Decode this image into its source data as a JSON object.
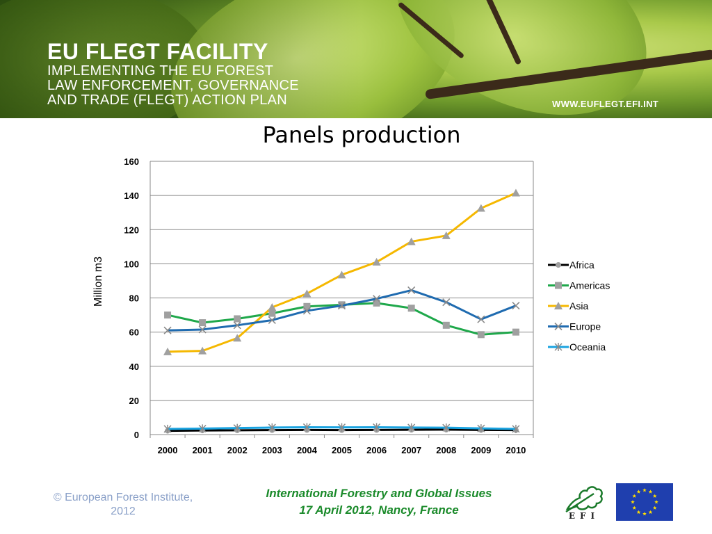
{
  "banner": {
    "title": "EU FLEGT FACILITY",
    "subtitle_lines": [
      "IMPLEMENTING THE EU FOREST",
      "LAW ENFORCEMENT, GOVERNANCE",
      "AND TRADE (FLEGT) ACTION PLAN"
    ],
    "url": "WWW.EUFLEGT.EFI.INT"
  },
  "chart_data": {
    "type": "line",
    "title": "Panels production",
    "ylabel": "Million m3",
    "xlabel": "",
    "x": [
      "2000",
      "2001",
      "2002",
      "2003",
      "2004",
      "2005",
      "2006",
      "2007",
      "2008",
      "2009",
      "2010"
    ],
    "ylim": [
      0,
      160
    ],
    "yticks": [
      0,
      20,
      40,
      60,
      80,
      100,
      120,
      140,
      160
    ],
    "grid": "horizontal",
    "legend": "right",
    "series": [
      {
        "name": "Africa",
        "color": "#000000",
        "marker": "circle",
        "values": [
          2.2,
          2.4,
          2.5,
          2.6,
          2.7,
          2.6,
          2.7,
          2.8,
          2.9,
          2.7,
          2.6
        ]
      },
      {
        "name": "Americas",
        "color": "#1fa84b",
        "marker": "square",
        "values": [
          70,
          65.5,
          67.8,
          71,
          75,
          76,
          77,
          74,
          64,
          58.5,
          60
        ]
      },
      {
        "name": "Asia",
        "color": "#f5b800",
        "marker": "triangle",
        "values": [
          48.5,
          49,
          56.5,
          74.5,
          82.5,
          93.5,
          101,
          113,
          116.5,
          132.5,
          141.5
        ]
      },
      {
        "name": "Europe",
        "color": "#1f6bb0",
        "marker": "x",
        "values": [
          61,
          61.5,
          64,
          67,
          72.5,
          75.5,
          79.5,
          84.5,
          77.5,
          67.5,
          75.5
        ]
      },
      {
        "name": "Oceania",
        "color": "#1aa3e0",
        "marker": "star",
        "values": [
          3.3,
          3.5,
          3.8,
          4.1,
          4.3,
          4.2,
          4.3,
          4.1,
          4.0,
          3.6,
          3.3
        ]
      }
    ]
  },
  "footer": {
    "copyright_lines": [
      "© European Forest Institute,",
      "2012"
    ],
    "conference_lines": [
      "International Forestry and Global Issues",
      "17 April 2012, Nancy, France"
    ],
    "efi_letters": "EFI"
  }
}
